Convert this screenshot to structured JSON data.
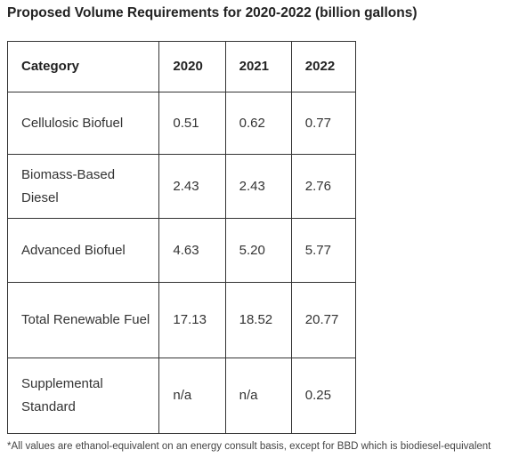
{
  "title": "Proposed Volume Requirements for 2020-2022 (billion gallons)",
  "table": {
    "headers": [
      "Category",
      "2020",
      "2021",
      "2022"
    ],
    "rows": [
      {
        "category": "Cellulosic Biofuel",
        "v2020": "0.51",
        "v2021": "0.62",
        "v2022": "0.77"
      },
      {
        "category": "Biomass-Based Diesel",
        "v2020": "2.43",
        "v2021": "2.43",
        "v2022": "2.76"
      },
      {
        "category": "Advanced Biofuel",
        "v2020": "4.63",
        "v2021": "5.20",
        "v2022": "5.77"
      },
      {
        "category": "Total Renewable Fuel",
        "v2020": "17.13",
        "v2021": "18.52",
        "v2022": "20.77"
      },
      {
        "category": "Supplemental Standard",
        "v2020": "n/a",
        "v2021": "n/a",
        "v2022": "0.25"
      }
    ]
  },
  "footnote": "*All values are ethanol-equivalent on an energy consult basis, except for BBD which is biodiesel-equivalent"
}
